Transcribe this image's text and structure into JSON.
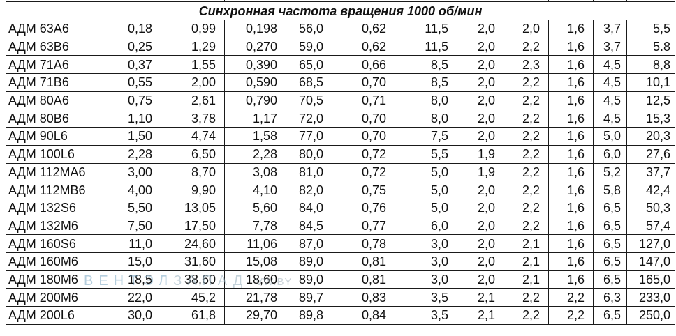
{
  "section_title": "Синхронная частота вращения 1000 об/мин",
  "rows": [
    [
      "АДМ 63А6",
      "0,18",
      "0,99",
      "0,198",
      "56,0",
      "0,62",
      "11,5",
      "2,0",
      "2,0",
      "1,6",
      "3,7",
      "5,5"
    ],
    [
      "АДМ 63В6",
      "0,25",
      "1,29",
      "0,270",
      "59,0",
      "0,62",
      "11,5",
      "2,0",
      "2,2",
      "1,6",
      "3,7",
      "5.8"
    ],
    [
      "АДМ 71А6",
      "0,37",
      "1,55",
      "0,390",
      "65,0",
      "0,66",
      "8,5",
      "2,0",
      "2,3",
      "1,6",
      "4,5",
      "8,8"
    ],
    [
      "АДМ 71В6",
      "0,55",
      "2,00",
      "0,590",
      "68,5",
      "0,70",
      "8,5",
      "2,0",
      "2,2",
      "1,6",
      "4,5",
      "10,1"
    ],
    [
      "АДМ 80А6",
      "0,75",
      "2,61",
      "0,790",
      "70,5",
      "0,71",
      "8,0",
      "2,0",
      "2,2",
      "1,6",
      "4,5",
      "12,5"
    ],
    [
      "АДМ 80В6",
      "1,10",
      "3,78",
      "1,17",
      "72,0",
      "0,70",
      "8,0",
      "2,0",
      "2,2",
      "1,6",
      "4,5",
      "15,3"
    ],
    [
      "АДМ 90L6",
      "1,50",
      "4,74",
      "1,58",
      "77,0",
      "0,70",
      "7,5",
      "2,0",
      "2,2",
      "1,6",
      "5,0",
      "20,3"
    ],
    [
      "АДМ 100L6",
      "2,28",
      "6,50",
      "2,28",
      "80,0",
      "0,72",
      "5,5",
      "1,9",
      "2,2",
      "1,6",
      "6,0",
      "27,6"
    ],
    [
      "АДМ 112МА6",
      "3,00",
      "8,70",
      "3,08",
      "81,0",
      "0,72",
      "5,0",
      "1,9",
      "2,2",
      "1,6",
      "5,2",
      "37,7"
    ],
    [
      "АДМ 112МВ6",
      "4,00",
      "9,90",
      "4,10",
      "82,0",
      "0,75",
      "5,0",
      "2,0",
      "2,2",
      "1,6",
      "5,8",
      "42,4"
    ],
    [
      "АДМ 132S6",
      "5,50",
      "13,05",
      "5,60",
      "84,0",
      "0,76",
      "5,0",
      "2,0",
      "2,2",
      "1,6",
      "6,5",
      "50,3"
    ],
    [
      "АДМ 132М6",
      "7,50",
      "17,50",
      "7,78",
      "84,5",
      "0,77",
      "6,0",
      "2,0",
      "2,2",
      "1,6",
      "6,5",
      "57,4"
    ],
    [
      "АДМ 160S6",
      "11,0",
      "24,60",
      "11,06",
      "87,0",
      "0,78",
      "3,0",
      "2,0",
      "2,1",
      "1,6",
      "6,5",
      "127,0"
    ],
    [
      "АДМ 160М6",
      "15,0",
      "31,60",
      "15,08",
      "89,0",
      "0,81",
      "3,0",
      "2,0",
      "2,1",
      "1,6",
      "6,5",
      "147,0"
    ],
    [
      "АДМ 180М6",
      "18,5",
      "38,60",
      "18,60",
      "89,0",
      "0,81",
      "3,0",
      "2,0",
      "2,1",
      "1,6",
      "6,5",
      "165,0"
    ],
    [
      "АДМ 200М6",
      "22,0",
      "45,2",
      "21,78",
      "89,7",
      "0,83",
      "3,5",
      "2,1",
      "2,2",
      "2,2",
      "6,3",
      "233,0"
    ],
    [
      "АДМ 200L6",
      "30,0",
      "61,8",
      "29,70",
      "89,8",
      "0,84",
      "3,5",
      "2,1",
      "2,2",
      "2,2",
      "6,5",
      "250,0"
    ]
  ],
  "watermark": {
    "brand_first": "ВЕНТЭЛ",
    "brand_second": "ЗАПАД",
    "site": "VW.BY"
  }
}
